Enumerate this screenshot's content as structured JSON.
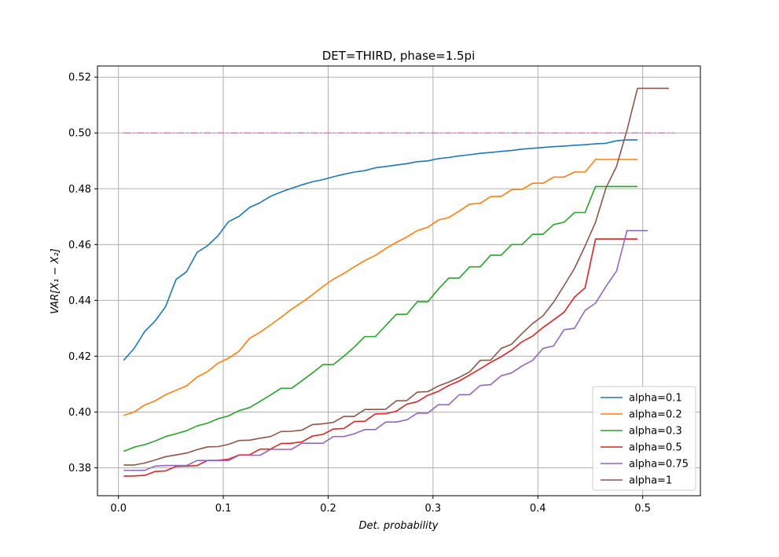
{
  "chart_data": {
    "type": "line",
    "title": "DET=THIRD, phase=1.5pi",
    "xlabel": "Det. probability",
    "ylabel": "VAR[X₁ − X₂]",
    "xlim": [
      -0.02,
      0.555
    ],
    "ylim": [
      0.37,
      0.524
    ],
    "xticks": [
      "0.0",
      "0.1",
      "0.2",
      "0.3",
      "0.4",
      "0.5"
    ],
    "yticks": [
      "0.38",
      "0.40",
      "0.42",
      "0.44",
      "0.46",
      "0.48",
      "0.50",
      "0.52"
    ],
    "grid": true,
    "legend_position": "lower-right",
    "reference_line": {
      "y": 0.5,
      "x_range": [
        0.005,
        0.53
      ],
      "color": "#e377c2",
      "style": "dash-dot"
    },
    "series": [
      {
        "name": "alpha=0.1",
        "color": "#1f77b4",
        "x": [
          0.005,
          0.015,
          0.025,
          0.035,
          0.045,
          0.055,
          0.065,
          0.075,
          0.085,
          0.095,
          0.105,
          0.115,
          0.125,
          0.135,
          0.145,
          0.155,
          0.165,
          0.175,
          0.185,
          0.195,
          0.205,
          0.215,
          0.225,
          0.235,
          0.245,
          0.255,
          0.265,
          0.275,
          0.285,
          0.295,
          0.305,
          0.315,
          0.325,
          0.335,
          0.345,
          0.355,
          0.365,
          0.375,
          0.385,
          0.395,
          0.405,
          0.415,
          0.425,
          0.435,
          0.445,
          0.455,
          0.465,
          0.475,
          0.485,
          0.495
        ],
        "y": [
          0.4185,
          0.4228,
          0.4288,
          0.4326,
          0.4378,
          0.4475,
          0.4503,
          0.4572,
          0.4596,
          0.4632,
          0.4682,
          0.4701,
          0.4733,
          0.475,
          0.4773,
          0.4788,
          0.4802,
          0.4814,
          0.4825,
          0.4833,
          0.4843,
          0.4852,
          0.486,
          0.4865,
          0.4875,
          0.488,
          0.4885,
          0.489,
          0.4897,
          0.49,
          0.4908,
          0.4912,
          0.4918,
          0.4922,
          0.4927,
          0.493,
          0.4934,
          0.4937,
          0.4942,
          0.4945,
          0.4948,
          0.4951,
          0.4953,
          0.4956,
          0.4958,
          0.4961,
          0.4963,
          0.4972,
          0.4975,
          0.4975
        ]
      },
      {
        "name": "alpha=0.2",
        "color": "#ff7f0e",
        "x": [
          0.005,
          0.015,
          0.025,
          0.035,
          0.045,
          0.055,
          0.065,
          0.075,
          0.085,
          0.095,
          0.105,
          0.115,
          0.125,
          0.135,
          0.145,
          0.155,
          0.165,
          0.175,
          0.185,
          0.195,
          0.205,
          0.215,
          0.225,
          0.235,
          0.245,
          0.255,
          0.265,
          0.275,
          0.285,
          0.295,
          0.305,
          0.315,
          0.325,
          0.335,
          0.345,
          0.355,
          0.365,
          0.375,
          0.385,
          0.395,
          0.405,
          0.415,
          0.425,
          0.435,
          0.445,
          0.455,
          0.465,
          0.475,
          0.485,
          0.495
        ],
        "y": [
          0.3988,
          0.4,
          0.4025,
          0.404,
          0.4062,
          0.4078,
          0.4094,
          0.4125,
          0.4145,
          0.4175,
          0.4193,
          0.4218,
          0.4264,
          0.4286,
          0.4312,
          0.4339,
          0.4368,
          0.4393,
          0.442,
          0.445,
          0.4476,
          0.4497,
          0.452,
          0.4543,
          0.4561,
          0.4586,
          0.4608,
          0.4627,
          0.465,
          0.4662,
          0.4688,
          0.4697,
          0.472,
          0.4745,
          0.4748,
          0.4772,
          0.4773,
          0.4797,
          0.4798,
          0.482,
          0.482,
          0.4842,
          0.4842,
          0.486,
          0.486,
          0.4905,
          0.4905,
          0.4905,
          0.4905,
          0.4905
        ]
      },
      {
        "name": "alpha=0.3",
        "color": "#2ca02c",
        "x": [
          0.005,
          0.015,
          0.025,
          0.035,
          0.045,
          0.055,
          0.065,
          0.075,
          0.085,
          0.095,
          0.105,
          0.115,
          0.125,
          0.135,
          0.145,
          0.155,
          0.165,
          0.175,
          0.185,
          0.195,
          0.205,
          0.215,
          0.225,
          0.235,
          0.245,
          0.255,
          0.265,
          0.275,
          0.285,
          0.295,
          0.305,
          0.315,
          0.325,
          0.335,
          0.345,
          0.355,
          0.365,
          0.375,
          0.385,
          0.395,
          0.405,
          0.415,
          0.425,
          0.435,
          0.445,
          0.455,
          0.465,
          0.475,
          0.485,
          0.495
        ],
        "y": [
          0.3859,
          0.3874,
          0.3883,
          0.3896,
          0.3912,
          0.3922,
          0.3933,
          0.395,
          0.396,
          0.3976,
          0.3986,
          0.4005,
          0.4016,
          0.4038,
          0.4061,
          0.4085,
          0.4085,
          0.4112,
          0.414,
          0.417,
          0.417,
          0.42,
          0.4233,
          0.427,
          0.427,
          0.431,
          0.435,
          0.435,
          0.4395,
          0.4395,
          0.444,
          0.448,
          0.448,
          0.452,
          0.452,
          0.4562,
          0.4562,
          0.46,
          0.46,
          0.4637,
          0.4637,
          0.4672,
          0.468,
          0.4715,
          0.4715,
          0.4808,
          0.4808,
          0.4808,
          0.4808,
          0.4808
        ]
      },
      {
        "name": "alpha=0.5",
        "color": "#d62728",
        "x": [
          0.005,
          0.015,
          0.025,
          0.035,
          0.045,
          0.055,
          0.065,
          0.075,
          0.085,
          0.095,
          0.105,
          0.115,
          0.125,
          0.135,
          0.145,
          0.155,
          0.165,
          0.175,
          0.185,
          0.195,
          0.205,
          0.215,
          0.225,
          0.235,
          0.245,
          0.255,
          0.265,
          0.275,
          0.285,
          0.295,
          0.305,
          0.315,
          0.325,
          0.335,
          0.345,
          0.355,
          0.365,
          0.375,
          0.385,
          0.395,
          0.405,
          0.415,
          0.425,
          0.435,
          0.445,
          0.455,
          0.465,
          0.475,
          0.485,
          0.495
        ],
        "y": [
          0.377,
          0.3771,
          0.3773,
          0.3787,
          0.3789,
          0.3805,
          0.3806,
          0.3808,
          0.3826,
          0.3827,
          0.3831,
          0.3846,
          0.3846,
          0.3867,
          0.3867,
          0.3887,
          0.3888,
          0.3893,
          0.3914,
          0.392,
          0.3939,
          0.3941,
          0.3966,
          0.3967,
          0.3993,
          0.3994,
          0.4003,
          0.4028,
          0.4037,
          0.406,
          0.4074,
          0.4095,
          0.4111,
          0.4133,
          0.4155,
          0.4178,
          0.4198,
          0.4222,
          0.4252,
          0.4272,
          0.4303,
          0.433,
          0.4358,
          0.4412,
          0.4445,
          0.462,
          0.462,
          0.462,
          0.462,
          0.462
        ]
      },
      {
        "name": "alpha=0.75",
        "color": "#9467bd",
        "x": [
          0.005,
          0.015,
          0.025,
          0.035,
          0.045,
          0.055,
          0.065,
          0.075,
          0.085,
          0.095,
          0.105,
          0.115,
          0.125,
          0.135,
          0.145,
          0.155,
          0.165,
          0.175,
          0.185,
          0.195,
          0.205,
          0.215,
          0.225,
          0.235,
          0.245,
          0.255,
          0.265,
          0.275,
          0.285,
          0.295,
          0.305,
          0.315,
          0.325,
          0.335,
          0.345,
          0.355,
          0.365,
          0.375,
          0.385,
          0.395,
          0.405,
          0.415,
          0.425,
          0.435,
          0.445,
          0.455,
          0.465,
          0.475,
          0.485,
          0.495,
          0.505
        ],
        "y": [
          0.3791,
          0.3791,
          0.3791,
          0.3806,
          0.3808,
          0.3808,
          0.3808,
          0.3826,
          0.3826,
          0.3826,
          0.3826,
          0.3845,
          0.3845,
          0.3845,
          0.3866,
          0.3866,
          0.3866,
          0.3888,
          0.3888,
          0.3888,
          0.3912,
          0.3912,
          0.3922,
          0.3937,
          0.3937,
          0.3964,
          0.3964,
          0.3972,
          0.3996,
          0.3996,
          0.4026,
          0.4026,
          0.4062,
          0.4062,
          0.4095,
          0.4098,
          0.413,
          0.414,
          0.4165,
          0.4185,
          0.4228,
          0.4237,
          0.4295,
          0.43,
          0.4364,
          0.439,
          0.445,
          0.4505,
          0.465,
          0.465,
          0.465
        ]
      },
      {
        "name": "alpha=1",
        "color": "#8c564b",
        "x": [
          0.005,
          0.015,
          0.025,
          0.035,
          0.045,
          0.055,
          0.065,
          0.075,
          0.085,
          0.095,
          0.105,
          0.115,
          0.125,
          0.135,
          0.145,
          0.155,
          0.165,
          0.175,
          0.185,
          0.195,
          0.205,
          0.215,
          0.225,
          0.235,
          0.245,
          0.255,
          0.265,
          0.275,
          0.285,
          0.295,
          0.305,
          0.315,
          0.325,
          0.335,
          0.345,
          0.355,
          0.365,
          0.375,
          0.385,
          0.395,
          0.405,
          0.415,
          0.425,
          0.435,
          0.445,
          0.455,
          0.465,
          0.475,
          0.485,
          0.495,
          0.505,
          0.515,
          0.525
        ],
        "y": [
          0.381,
          0.381,
          0.3817,
          0.3828,
          0.384,
          0.3846,
          0.3853,
          0.3865,
          0.3875,
          0.3876,
          0.3884,
          0.3898,
          0.3899,
          0.3906,
          0.3912,
          0.393,
          0.3931,
          0.3935,
          0.3955,
          0.3958,
          0.3963,
          0.3984,
          0.3984,
          0.4009,
          0.4009,
          0.401,
          0.404,
          0.4041,
          0.4071,
          0.4073,
          0.4093,
          0.4107,
          0.4124,
          0.4144,
          0.4185,
          0.4186,
          0.4228,
          0.4243,
          0.4282,
          0.4317,
          0.4345,
          0.4394,
          0.4453,
          0.4515,
          0.4595,
          0.468,
          0.4803,
          0.488,
          0.501,
          0.516,
          0.516,
          0.516,
          0.516
        ]
      }
    ]
  }
}
